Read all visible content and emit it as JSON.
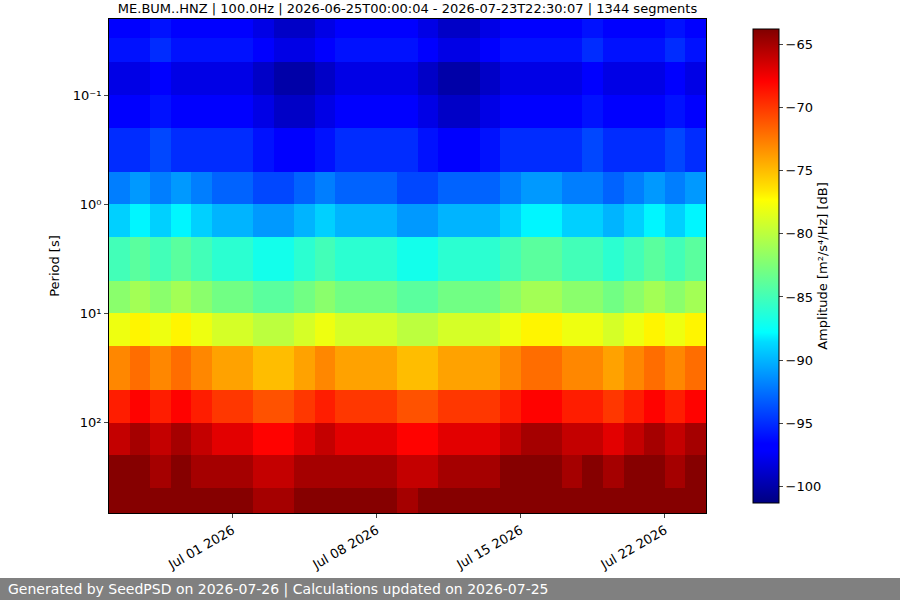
{
  "chart_data": {
    "type": "heatmap",
    "title": "ME.BUM..HNZ | 100.0Hz | 2026-06-25T00:00:04 - 2026-07-23T22:30:07 | 1344 segments",
    "ylabel": "Period [s]",
    "colorbar_label": "Amplitude [m²/s⁴/Hz] [dB]",
    "footer": "Generated by SeedPSD on 2026-07-26 | Calculations updated on 2026-07-25",
    "log": "y",
    "grid": true,
    "xlim": [
      "2026-06-25",
      "2026-07-24"
    ],
    "xticks": [
      {
        "value": "2026-07-01",
        "label": "Jul 01 2026"
      },
      {
        "value": "2026-07-08",
        "label": "Jul 08 2026"
      },
      {
        "value": "2026-07-15",
        "label": "Jul 15 2026"
      },
      {
        "value": "2026-07-22",
        "label": "Jul 22 2026"
      }
    ],
    "ylim": [
      675,
      0.02
    ],
    "yticks": [
      {
        "value": 0.1,
        "label": "10⁻¹"
      },
      {
        "value": 1,
        "label": "10⁰"
      },
      {
        "value": 10,
        "label": "10¹"
      },
      {
        "value": 100,
        "label": "10²"
      }
    ],
    "zlim": [
      -101.3,
      -63.8
    ],
    "zticks": [
      -100,
      -95,
      -90,
      -85,
      -80,
      -75,
      -70,
      -65
    ],
    "x_bins": [
      "2026-06-25",
      "2026-06-26",
      "2026-06-27",
      "2026-06-28",
      "2026-06-29",
      "2026-06-30",
      "2026-07-01",
      "2026-07-02",
      "2026-07-03",
      "2026-07-04",
      "2026-07-05",
      "2026-07-06",
      "2026-07-07",
      "2026-07-08",
      "2026-07-09",
      "2026-07-10",
      "2026-07-11",
      "2026-07-12",
      "2026-07-13",
      "2026-07-14",
      "2026-07-15",
      "2026-07-16",
      "2026-07-17",
      "2026-07-18",
      "2026-07-19",
      "2026-07-20",
      "2026-07-21",
      "2026-07-22",
      "2026-07-23",
      "2026-07-24"
    ],
    "period_bins": [
      0.02,
      0.03,
      0.05,
      0.1,
      0.2,
      0.5,
      1,
      2,
      5,
      10,
      20,
      50,
      100,
      200,
      400,
      675
    ],
    "cells": [
      [
        -97,
        -97,
        -96,
        -97,
        -97,
        -97,
        -97,
        -98,
        -99,
        -99,
        -98,
        -97,
        -97,
        -97,
        -97,
        -98,
        -99,
        -99,
        -98,
        -97,
        -97,
        -97,
        -97,
        -96,
        -97,
        -97,
        -97,
        -96,
        -97
      ],
      [
        -96,
        -96,
        -95,
        -96,
        -96,
        -96,
        -96,
        -97,
        -98,
        -98,
        -97,
        -96,
        -96,
        -96,
        -96,
        -97,
        -98,
        -98,
        -97,
        -96,
        -96,
        -96,
        -96,
        -95,
        -96,
        -96,
        -96,
        -95,
        -96
      ],
      [
        -98,
        -98,
        -97,
        -98,
        -98,
        -98,
        -98,
        -99,
        -100,
        -100,
        -99,
        -98,
        -98,
        -98,
        -98,
        -99,
        -100,
        -100,
        -99,
        -98,
        -98,
        -98,
        -98,
        -97,
        -98,
        -98,
        -98,
        -97,
        -98
      ],
      [
        -97,
        -97,
        -96,
        -97,
        -97,
        -97,
        -97,
        -98,
        -99,
        -99,
        -98,
        -97,
        -97,
        -97,
        -97,
        -98,
        -99,
        -99,
        -98,
        -97,
        -97,
        -97,
        -97,
        -96,
        -97,
        -97,
        -97,
        -96,
        -97
      ],
      [
        -95,
        -95,
        -94,
        -95,
        -95,
        -95,
        -95,
        -96,
        -97,
        -97,
        -96,
        -95,
        -95,
        -95,
        -95,
        -96,
        -97,
        -97,
        -96,
        -95,
        -95,
        -95,
        -95,
        -94,
        -95,
        -95,
        -95,
        -94,
        -95
      ],
      [
        -92,
        -91,
        -92,
        -91,
        -92,
        -93,
        -93,
        -94,
        -94,
        -93,
        -92,
        -93,
        -93,
        -93,
        -94,
        -94,
        -93,
        -93,
        -93,
        -92,
        -91,
        -91,
        -92,
        -92,
        -93,
        -92,
        -91,
        -92,
        -91
      ],
      [
        -89,
        -88,
        -89,
        -88,
        -89,
        -90,
        -90,
        -91,
        -91,
        -90,
        -89,
        -90,
        -90,
        -90,
        -91,
        -91,
        -90,
        -90,
        -90,
        -89,
        -88,
        -88,
        -89,
        -89,
        -90,
        -89,
        -88,
        -89,
        -88
      ],
      [
        -85,
        -84,
        -85,
        -84,
        -85,
        -86,
        -86,
        -87,
        -87,
        -86,
        -85,
        -86,
        -86,
        -86,
        -87,
        -87,
        -86,
        -86,
        -86,
        -85,
        -84,
        -84,
        -85,
        -85,
        -86,
        -85,
        -84,
        -85,
        -84
      ],
      [
        -82,
        -81,
        -82,
        -81,
        -82,
        -83,
        -83,
        -84,
        -84,
        -83,
        -82,
        -83,
        -83,
        -83,
        -84,
        -84,
        -83,
        -83,
        -83,
        -82,
        -81,
        -81,
        -82,
        -82,
        -83,
        -82,
        -81,
        -82,
        -81
      ],
      [
        -78,
        -77,
        -78,
        -77,
        -78,
        -79,
        -79,
        -80,
        -80,
        -79,
        -78,
        -79,
        -79,
        -79,
        -80,
        -80,
        -79,
        -79,
        -79,
        -78,
        -77,
        -77,
        -78,
        -78,
        -79,
        -78,
        -77,
        -78,
        -77
      ],
      [
        -73,
        -72,
        -73,
        -72,
        -73,
        -74,
        -74,
        -75,
        -75,
        -74,
        -73,
        -74,
        -74,
        -74,
        -75,
        -75,
        -74,
        -74,
        -74,
        -73,
        -72,
        -72,
        -73,
        -73,
        -74,
        -73,
        -72,
        -73,
        -72
      ],
      [
        -69,
        -68,
        -69,
        -68,
        -69,
        -70,
        -70,
        -71,
        -71,
        -70,
        -69,
        -70,
        -70,
        -70,
        -71,
        -71,
        -70,
        -70,
        -70,
        -69,
        -68,
        -68,
        -69,
        -69,
        -70,
        -69,
        -68,
        -69,
        -68
      ],
      [
        -66,
        -65,
        -66,
        -65,
        -66,
        -67,
        -67,
        -68,
        -68,
        -67,
        -66,
        -67,
        -67,
        -67,
        -68,
        -68,
        -67,
        -67,
        -67,
        -66,
        -65,
        -65,
        -66,
        -66,
        -67,
        -66,
        -65,
        -66,
        -65
      ],
      [
        -64,
        -64,
        -65,
        -64,
        -65,
        -65,
        -65,
        -66,
        -66,
        -65,
        -65,
        -65,
        -65,
        -65,
        -66,
        -66,
        -65,
        -65,
        -65,
        -64,
        -64,
        -64,
        -65,
        -64,
        -65,
        -64,
        -64,
        -65,
        -64
      ],
      [
        -64,
        -64,
        -64,
        -64,
        -64,
        -64,
        -64,
        -65,
        -65,
        -64,
        -64,
        -64,
        -64,
        -64,
        -65,
        -64,
        -64,
        -64,
        -64,
        -64,
        -64,
        -64,
        -64,
        -64,
        -64,
        -64,
        -64,
        -64,
        -64
      ]
    ]
  }
}
